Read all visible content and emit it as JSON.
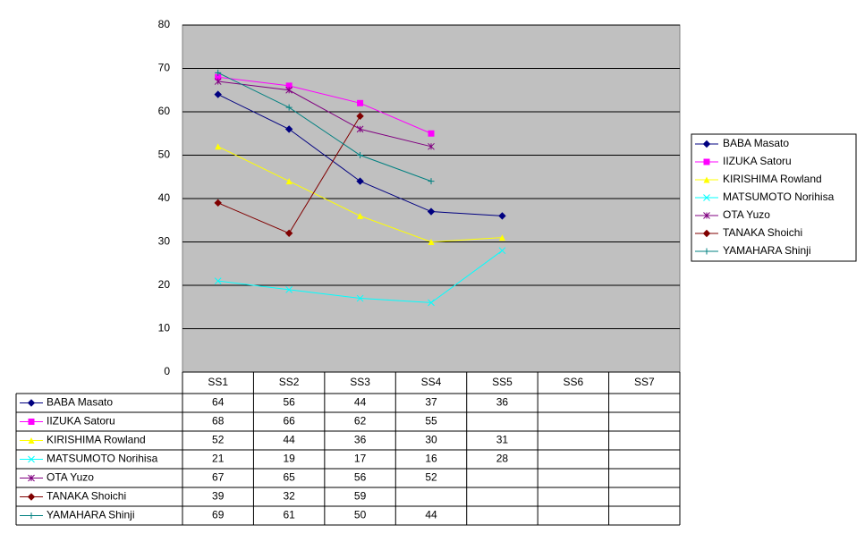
{
  "chart_data": {
    "type": "line",
    "categories": [
      "SS1",
      "SS2",
      "SS3",
      "SS4",
      "SS5",
      "SS6",
      "SS7"
    ],
    "ylim": [
      0,
      80
    ],
    "yticks": [
      0,
      10,
      20,
      30,
      40,
      50,
      60,
      70,
      80
    ],
    "grid": true,
    "legend": "right",
    "data_table": true,
    "series": [
      {
        "name": "BABA Masato",
        "color": "#000080",
        "marker": "diamond",
        "values": [
          64,
          56,
          44,
          37,
          36,
          null,
          null
        ]
      },
      {
        "name": "IIZUKA Satoru",
        "color": "#ff00ff",
        "marker": "square",
        "values": [
          68,
          66,
          62,
          55,
          null,
          null,
          null
        ]
      },
      {
        "name": "KIRISHIMA Rowland",
        "color": "#ffff00",
        "marker": "triangle",
        "values": [
          52,
          44,
          36,
          30,
          31,
          null,
          null
        ]
      },
      {
        "name": "MATSUMOTO Norihisa",
        "color": "#00ffff",
        "marker": "x",
        "values": [
          21,
          19,
          17,
          16,
          28,
          null,
          null
        ]
      },
      {
        "name": "OTA Yuzo",
        "color": "#800080",
        "marker": "star",
        "values": [
          67,
          65,
          56,
          52,
          null,
          null,
          null
        ]
      },
      {
        "name": "TANAKA Shoichi",
        "color": "#800000",
        "marker": "diamond",
        "values": [
          39,
          32,
          59,
          null,
          null,
          null,
          null
        ]
      },
      {
        "name": "YAMAHARA Shinji",
        "color": "#008080",
        "marker": "plus",
        "values": [
          69,
          61,
          50,
          44,
          null,
          null,
          null
        ]
      }
    ]
  }
}
